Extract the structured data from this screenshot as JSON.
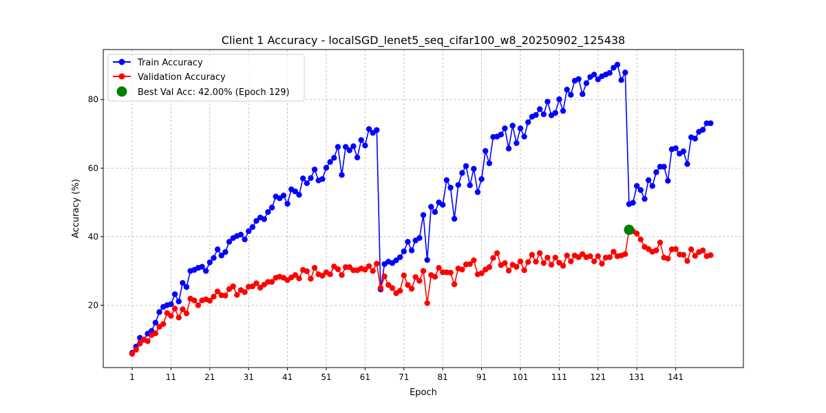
{
  "chart_data": {
    "type": "line",
    "title": "Client 1 Accuracy - localSGD_lenet5_seq_cifar100_w8_20250902_125438",
    "xlabel": "Epoch",
    "ylabel": "Accuracy (%)",
    "xlim": [
      -6.45,
      158.45
    ],
    "ylim": [
      1.8,
      94.6
    ],
    "xticks": [
      1,
      11,
      21,
      31,
      41,
      51,
      61,
      71,
      81,
      91,
      101,
      111,
      121,
      131,
      141
    ],
    "yticks": [
      20,
      40,
      60,
      80
    ],
    "grid": true,
    "legend_position": "top-left",
    "series": [
      {
        "name": "Train Accuracy",
        "color": "#0000ff",
        "x_start": 1,
        "values": [
          6.1,
          7.9,
          10.5,
          9.9,
          11.7,
          12.5,
          14.9,
          18.0,
          19.5,
          20.0,
          20.3,
          23.2,
          21.1,
          26.5,
          25.3,
          30.0,
          30.3,
          30.9,
          31.2,
          30.0,
          32.5,
          33.8,
          36.3,
          34.5,
          35.5,
          38.5,
          39.6,
          40.2,
          40.6,
          39.2,
          41.6,
          42.8,
          44.6,
          45.6,
          45.1,
          47.2,
          48.5,
          51.7,
          51.2,
          52.0,
          49.6,
          53.8,
          53.2,
          52.2,
          57.0,
          55.6,
          57.1,
          59.6,
          56.4,
          56.8,
          60.1,
          61.8,
          63.0,
          66.2,
          58.0,
          66.2,
          65.2,
          66.4,
          63.1,
          68.2,
          66.6,
          71.4,
          70.3,
          71.1,
          24.6,
          32.0,
          32.7,
          32.3,
          33.1,
          34.0,
          35.7,
          38.5,
          36.0,
          38.9,
          39.6,
          46.3,
          33.2,
          48.7,
          47.2,
          50.0,
          49.3,
          56.5,
          54.3,
          45.2,
          55.1,
          58.6,
          60.6,
          55.0,
          59.8,
          53.0,
          56.8,
          65.0,
          61.4,
          69.1,
          69.2,
          69.8,
          71.6,
          65.7,
          72.4,
          67.3,
          71.6,
          69.2,
          73.4,
          75.0,
          75.5,
          77.2,
          75.7,
          79.4,
          75.4,
          76.1,
          80.1,
          76.7,
          82.9,
          81.4,
          85.5,
          86.0,
          81.6,
          84.8,
          86.6,
          87.3,
          85.9,
          86.8,
          87.3,
          87.8,
          89.3,
          90.2,
          85.7,
          87.9,
          49.5,
          49.9,
          54.8,
          53.6,
          51.0,
          56.5,
          54.8,
          58.8,
          60.4,
          60.4,
          56.3,
          65.5,
          65.8,
          64.2,
          64.9,
          61.2,
          69.0,
          68.6,
          70.6,
          71.2,
          73.1,
          73.1
        ]
      },
      {
        "name": "Validation Accuracy",
        "color": "#ff0000",
        "x_start": 1,
        "values": [
          5.8,
          7.0,
          8.8,
          10.0,
          9.5,
          11.3,
          11.8,
          13.7,
          14.5,
          17.7,
          16.9,
          19.0,
          16.4,
          18.8,
          17.6,
          21.9,
          21.4,
          20.0,
          21.4,
          21.7,
          21.3,
          22.5,
          24.0,
          22.9,
          22.8,
          24.7,
          25.5,
          23.0,
          24.4,
          23.8,
          25.4,
          25.5,
          26.4,
          25.1,
          26.0,
          26.8,
          26.8,
          28.0,
          28.3,
          28.0,
          27.3,
          28.1,
          28.8,
          27.8,
          30.3,
          29.9,
          27.7,
          30.9,
          29.0,
          28.6,
          29.6,
          29.0,
          31.3,
          30.5,
          28.8,
          31.1,
          31.1,
          30.2,
          30.2,
          30.7,
          30.4,
          31.4,
          30.0,
          32.1,
          25.0,
          28.4,
          25.9,
          25.0,
          23.5,
          24.2,
          28.7,
          25.9,
          24.8,
          28.2,
          27.1,
          30.0,
          20.6,
          28.8,
          28.3,
          30.9,
          29.6,
          29.6,
          29.5,
          26.1,
          30.7,
          30.4,
          31.9,
          32.0,
          33.1,
          29.0,
          29.3,
          30.4,
          31.1,
          33.8,
          35.2,
          31.7,
          32.3,
          30.1,
          31.8,
          31.2,
          32.8,
          30.2,
          32.6,
          34.7,
          32.7,
          35.2,
          32.3,
          33.9,
          31.8,
          33.9,
          32.4,
          31.5,
          34.5,
          32.8,
          34.5,
          34.0,
          34.9,
          34.0,
          34.3,
          32.8,
          34.3,
          32.1,
          33.9,
          34.0,
          35.6,
          34.3,
          34.5,
          34.9,
          42.0,
          41.6,
          40.9,
          39.2,
          37.0,
          36.4,
          35.6,
          36.0,
          38.3,
          33.9,
          33.6,
          36.3,
          36.4,
          34.8,
          34.7,
          32.9,
          36.3,
          34.4,
          35.5,
          36.0,
          34.3,
          34.6
        ]
      }
    ],
    "best_marker": {
      "label": "Best Val Acc: 42.00% (Epoch 129)",
      "epoch": 129,
      "value": 42.0,
      "color": "#008000"
    }
  }
}
